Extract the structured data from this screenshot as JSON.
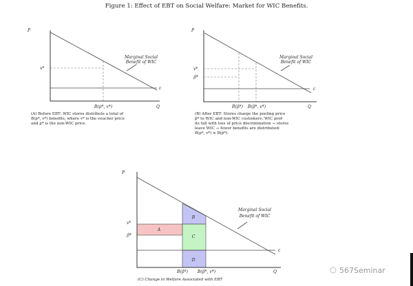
{
  "title": "Figure 1: Effect of EBT on Social Welfare: Market for WIC Benefits.",
  "panel_a": {
    "y_axis": "P",
    "x_axis": "Q",
    "v_star": "v*",
    "c": "c",
    "msb_line1": "Marginal Social",
    "msb_line2": "Benefit of WIC",
    "x_tick": "B(p*, v*)",
    "caption": [
      "(A) Before EBT: WIC stores distribute a total of",
      "B(p*, v*) benefits, where v* is the voucher price",
      "and p* is the non-WIC price."
    ]
  },
  "panel_b": {
    "y_axis": "P",
    "x_axis": "Q",
    "v_star": "v*",
    "p_hat": "p̂*",
    "c": "c",
    "msb_line1": "Marginal Social",
    "msb_line2": "Benefit of WIC",
    "x_tick_1": "B(p̂*)",
    "x_tick_2": "B(p̂*, v*)",
    "caption": [
      "(B) After EBT: Stores charge the pooling price",
      "p̂* to WIC and non-WIC customers. WIC prof-",
      "its fall with loss of price discrimination → stores",
      "leave WIC → fewer benefits are distributed:",
      "B(p*, v*) ≥ B(p̂*)."
    ]
  },
  "panel_c": {
    "y_axis": "P",
    "x_axis": "Q",
    "v_star": "v*",
    "p_hat": "p̂*",
    "c": "c",
    "msb_line1": "Marginal Social",
    "msb_line2": "Benefit of WIC",
    "x_tick_1": "B(p̂*)",
    "x_tick_2": "B(p̂*, v*)",
    "areas": {
      "a": "A",
      "b": "B",
      "c": "C",
      "d": "D"
    },
    "area_colors": {
      "a": "#f6c4c4",
      "b": "#c4c4f4",
      "c": "#c4f4c4",
      "d": "#c4c4f4"
    },
    "caption": "(C) Change in Welfare Associated with EBT"
  },
  "watermark": "567Seminar"
}
